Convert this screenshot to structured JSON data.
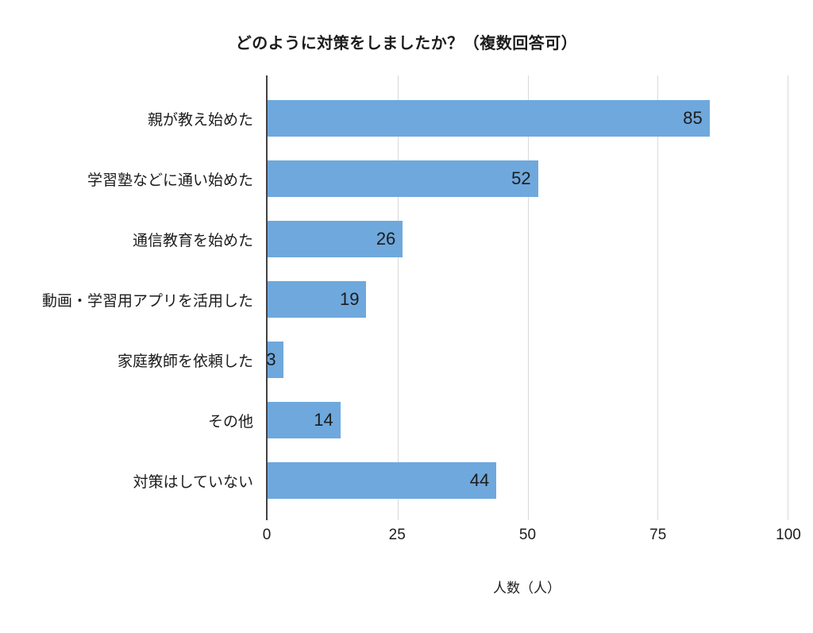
{
  "chart_data": {
    "type": "bar",
    "orientation": "horizontal",
    "title": "どのように対策をしましたか？（複数回答可）",
    "categories": [
      "親が教え始めた",
      "学習塾などに通い始めた",
      "通信教育を始めた",
      "動画・学習用アプリを活用した",
      "家庭教師を依頼した",
      "その他",
      "対策はしていない"
    ],
    "values": [
      85,
      52,
      26,
      19,
      3,
      14,
      44
    ],
    "xlabel": "人数（人）",
    "xlim": [
      0,
      100
    ],
    "xticks": [
      0,
      25,
      50,
      75,
      100
    ],
    "grid": true,
    "legend": "none",
    "value_label_position": "inside-end"
  },
  "colors": {
    "bar": "#6fa8dc",
    "gridline": "#d9d9d9",
    "axis_line": "#424242",
    "text": "#1c1c1c",
    "background": "#ffffff"
  }
}
